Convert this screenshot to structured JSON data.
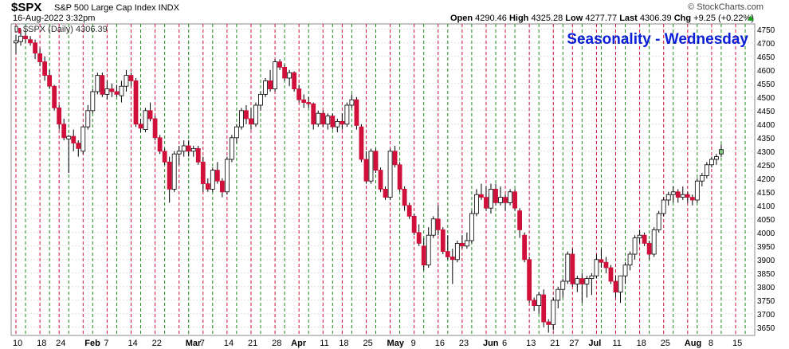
{
  "header": {
    "symbol": "$SPX",
    "name": "S&P 500 Large Cap Index  INDX",
    "datetime": "16-Aug-2022 3:32pm",
    "open_label": "Open",
    "open": "4290.46",
    "high_label": "High",
    "high": "4325.28",
    "low_label": "Low",
    "low": "4277.77",
    "last_label": "Last",
    "last": "4306.39",
    "chg_label": "Chg",
    "chg": "+9.25 (+0.22%)",
    "copyright": "© StockCharts.com"
  },
  "colors": {
    "up": "#ffffff",
    "down": "#d0103a",
    "neutral": "#000000",
    "current": "#7ed07e",
    "title": "#0a1fd6",
    "monday_line": "#d0103a",
    "wednesday_line": "#1c8c1c"
  },
  "chart_data": {
    "type": "candlestick",
    "title": "Seasonality - Wednesday",
    "legend": "$SPX (Daily) 4306.39",
    "ylim": [
      3620,
      4770
    ],
    "y_ticks": [
      3650,
      3700,
      3750,
      3800,
      3850,
      3900,
      3950,
      4000,
      4050,
      4100,
      4150,
      4200,
      4250,
      4300,
      4350,
      4400,
      4450,
      4500,
      4550,
      4600,
      4650,
      4700,
      4750
    ],
    "x_ticks": [
      {
        "label": "10",
        "day": 0
      },
      {
        "label": "18",
        "day": 5
      },
      {
        "label": "24",
        "day": 9
      },
      {
        "label": "Feb",
        "day": 15
      },
      {
        "label": "7",
        "day": 19
      },
      {
        "label": "14",
        "day": 24
      },
      {
        "label": "22",
        "day": 29
      },
      {
        "label": "Mar",
        "day": 36
      },
      {
        "label": "7",
        "day": 39
      },
      {
        "label": "14",
        "day": 44
      },
      {
        "label": "21",
        "day": 49
      },
      {
        "label": "28",
        "day": 54
      },
      {
        "label": "Apr",
        "day": 58
      },
      {
        "label": "11",
        "day": 64
      },
      {
        "label": "18",
        "day": 68
      },
      {
        "label": "25",
        "day": 73
      },
      {
        "label": "May",
        "day": 78
      },
      {
        "label": "9",
        "day": 83
      },
      {
        "label": "16",
        "day": 88
      },
      {
        "label": "23",
        "day": 93
      },
      {
        "label": "Jun",
        "day": 98
      },
      {
        "label": "6",
        "day": 102
      },
      {
        "label": "13",
        "day": 107
      },
      {
        "label": "21",
        "day": 112
      },
      {
        "label": "27",
        "day": 116
      },
      {
        "label": "Jul",
        "day": 120
      },
      {
        "label": "11",
        "day": 125
      },
      {
        "label": "18",
        "day": 130
      },
      {
        "label": "25",
        "day": 135
      },
      {
        "label": "Aug",
        "day": 140
      },
      {
        "label": "8",
        "day": 145
      },
      {
        "label": "15",
        "day": 150
      }
    ],
    "monday_days": [
      0,
      5,
      9,
      14,
      19,
      24,
      29,
      34,
      39,
      44,
      49,
      54,
      59,
      64,
      68,
      73,
      78,
      83,
      88,
      93,
      98,
      102,
      107,
      112,
      116,
      121,
      125,
      130,
      135,
      140,
      145,
      150
    ],
    "wednesday_days": [
      2,
      7,
      11,
      16,
      21,
      26,
      31,
      36,
      41,
      46,
      51,
      56,
      61,
      66,
      70,
      75,
      80,
      85,
      90,
      95,
      100,
      104,
      109,
      114,
      118,
      122,
      127,
      132,
      137,
      142,
      147,
      152
    ],
    "candles": [
      [
        4700,
        4730,
        4660,
        4708
      ],
      [
        4705,
        4750,
        4690,
        4725
      ],
      [
        4725,
        4745,
        4700,
        4715
      ],
      [
        4712,
        4725,
        4690,
        4700
      ],
      [
        4700,
        4712,
        4640,
        4662
      ],
      [
        4660,
        4680,
        4615,
        4630
      ],
      [
        4630,
        4650,
        4560,
        4580
      ],
      [
        4580,
        4600,
        4530,
        4540
      ],
      [
        4540,
        4545,
        4450,
        4460
      ],
      [
        4460,
        4470,
        4380,
        4400
      ],
      [
        4400,
        4420,
        4340,
        4350
      ],
      [
        4345,
        4360,
        4220,
        4355
      ],
      [
        4355,
        4380,
        4300,
        4330
      ],
      [
        4330,
        4340,
        4280,
        4310
      ],
      [
        4300,
        4395,
        4290,
        4390
      ],
      [
        4390,
        4470,
        4380,
        4450
      ],
      [
        4450,
        4530,
        4440,
        4520
      ],
      [
        4520,
        4590,
        4510,
        4580
      ],
      [
        4580,
        4590,
        4500,
        4510
      ],
      [
        4510,
        4560,
        4490,
        4530
      ],
      [
        4530,
        4550,
        4500,
        4520
      ],
      [
        4520,
        4545,
        4500,
        4510
      ],
      [
        4505,
        4560,
        4480,
        4540
      ],
      [
        4540,
        4600,
        4520,
        4580
      ],
      [
        4580,
        4590,
        4540,
        4560
      ],
      [
        4560,
        4570,
        4390,
        4400
      ],
      [
        4400,
        4420,
        4370,
        4385
      ],
      [
        4380,
        4460,
        4370,
        4450
      ],
      [
        4450,
        4480,
        4410,
        4420
      ],
      [
        4420,
        4430,
        4340,
        4350
      ],
      [
        4350,
        4360,
        4290,
        4300
      ],
      [
        4300,
        4310,
        4250,
        4260
      ],
      [
        4260,
        4280,
        4110,
        4160
      ],
      [
        4160,
        4300,
        4150,
        4290
      ],
      [
        4290,
        4320,
        4250,
        4300
      ],
      [
        4300,
        4340,
        4280,
        4320
      ],
      [
        4320,
        4340,
        4280,
        4300
      ],
      [
        4300,
        4320,
        4280,
        4310
      ],
      [
        4310,
        4320,
        4250,
        4260
      ],
      [
        4260,
        4280,
        4150,
        4180
      ],
      [
        4180,
        4200,
        4150,
        4160
      ],
      [
        4160,
        4240,
        4150,
        4230
      ],
      [
        4230,
        4260,
        4180,
        4190
      ],
      [
        4190,
        4200,
        4130,
        4150
      ],
      [
        4150,
        4280,
        4140,
        4270
      ],
      [
        4270,
        4360,
        4260,
        4350
      ],
      [
        4350,
        4400,
        4330,
        4390
      ],
      [
        4390,
        4460,
        4380,
        4450
      ],
      [
        4450,
        4470,
        4400,
        4420
      ],
      [
        4420,
        4460,
        4380,
        4400
      ],
      [
        4400,
        4480,
        4390,
        4470
      ],
      [
        4470,
        4520,
        4450,
        4510
      ],
      [
        4510,
        4570,
        4500,
        4560
      ],
      [
        4560,
        4600,
        4520,
        4530
      ],
      [
        4530,
        4640,
        4520,
        4630
      ],
      [
        4630,
        4640,
        4600,
        4610
      ],
      [
        4610,
        4620,
        4560,
        4570
      ],
      [
        4570,
        4600,
        4540,
        4590
      ],
      [
        4590,
        4595,
        4520,
        4530
      ],
      [
        4530,
        4545,
        4480,
        4490
      ],
      [
        4490,
        4510,
        4460,
        4480
      ],
      [
        4480,
        4500,
        4460,
        4475
      ],
      [
        4475,
        4480,
        4380,
        4400
      ],
      [
        4400,
        4450,
        4390,
        4440
      ],
      [
        4440,
        4450,
        4390,
        4400
      ],
      [
        4400,
        4440,
        4380,
        4430
      ],
      [
        4430,
        4440,
        4380,
        4390
      ],
      [
        4390,
        4420,
        4370,
        4410
      ],
      [
        4410,
        4440,
        4380,
        4400
      ],
      [
        4400,
        4480,
        4390,
        4470
      ],
      [
        4470,
        4510,
        4460,
        4490
      ],
      [
        4490,
        4500,
        4380,
        4395
      ],
      [
        4390,
        4400,
        4260,
        4270
      ],
      [
        4270,
        4300,
        4180,
        4190
      ],
      [
        4190,
        4310,
        4180,
        4300
      ],
      [
        4300,
        4310,
        4220,
        4230
      ],
      [
        4230,
        4240,
        4150,
        4160
      ],
      [
        4160,
        4170,
        4120,
        4130
      ],
      [
        4130,
        4310,
        4120,
        4300
      ],
      [
        4300,
        4320,
        4240,
        4250
      ],
      [
        4250,
        4260,
        4150,
        4160
      ],
      [
        4160,
        4170,
        4080,
        4100
      ],
      [
        4100,
        4110,
        4050,
        4060
      ],
      [
        4060,
        4070,
        3990,
        4000
      ],
      [
        4000,
        4030,
        3950,
        3960
      ],
      [
        3950,
        3980,
        3860,
        3880
      ],
      [
        3880,
        4020,
        3870,
        3990
      ],
      [
        3990,
        4060,
        3980,
        4050
      ],
      [
        4050,
        4100,
        3990,
        4010
      ],
      [
        4010,
        4020,
        3920,
        3930
      ],
      [
        3930,
        3990,
        3900,
        3910
      ],
      [
        3910,
        3940,
        3810,
        3900
      ],
      [
        3900,
        3970,
        3890,
        3960
      ],
      [
        3960,
        3990,
        3940,
        3950
      ],
      [
        3950,
        4000,
        3940,
        3970
      ],
      [
        3970,
        4080,
        3960,
        4070
      ],
      [
        4070,
        4160,
        4060,
        4140
      ],
      [
        4140,
        4180,
        4120,
        4130
      ],
      [
        4130,
        4170,
        4080,
        4090
      ],
      [
        4090,
        4180,
        4070,
        4160
      ],
      [
        4160,
        4180,
        4100,
        4110
      ],
      [
        4110,
        4170,
        4100,
        4130
      ],
      [
        4130,
        4140,
        4080,
        4110
      ],
      [
        4110,
        4160,
        4100,
        4150
      ],
      [
        4150,
        4160,
        4080,
        4090
      ],
      [
        4080,
        4090,
        3980,
        4010
      ],
      [
        3990,
        4000,
        3890,
        3900
      ],
      [
        3900,
        3910,
        3740,
        3750
      ],
      [
        3750,
        3760,
        3710,
        3730
      ],
      [
        3730,
        3780,
        3700,
        3770
      ],
      [
        3770,
        3790,
        3650,
        3670
      ],
      [
        3670,
        3680,
        3630,
        3660
      ],
      [
        3660,
        3760,
        3640,
        3750
      ],
      [
        3750,
        3800,
        3720,
        3790
      ],
      [
        3790,
        3830,
        3760,
        3820
      ],
      [
        3820,
        3930,
        3810,
        3920
      ],
      [
        3920,
        3940,
        3800,
        3810
      ],
      [
        3810,
        3840,
        3780,
        3830
      ],
      [
        3830,
        3850,
        3740,
        3810
      ],
      [
        3810,
        3840,
        3760,
        3830
      ],
      [
        3830,
        3850,
        3770,
        3840
      ],
      [
        3840,
        3920,
        3830,
        3900
      ],
      [
        3900,
        3940,
        3870,
        3890
      ],
      [
        3890,
        3910,
        3850,
        3870
      ],
      [
        3870,
        3880,
        3810,
        3820
      ],
      [
        3820,
        3840,
        3760,
        3780
      ],
      [
        3780,
        3830,
        3740,
        3840
      ],
      [
        3840,
        3890,
        3810,
        3880
      ],
      [
        3880,
        3930,
        3860,
        3920
      ],
      [
        3920,
        3990,
        3900,
        3980
      ],
      [
        3980,
        4010,
        3960,
        3990
      ],
      [
        3990,
        4000,
        3950,
        3960
      ],
      [
        3960,
        3970,
        3900,
        3920
      ],
      [
        3920,
        4020,
        3910,
        4010
      ],
      [
        4010,
        4080,
        4000,
        4070
      ],
      [
        4070,
        4130,
        4060,
        4120
      ],
      [
        4120,
        4150,
        4100,
        4140
      ],
      [
        4140,
        4170,
        4110,
        4150
      ],
      [
        4150,
        4160,
        4110,
        4130
      ],
      [
        4130,
        4170,
        4120,
        4140
      ],
      [
        4140,
        4150,
        4110,
        4130
      ],
      [
        4130,
        4140,
        4100,
        4120
      ],
      [
        4120,
        4200,
        4110,
        4190
      ],
      [
        4190,
        4220,
        4170,
        4210
      ],
      [
        4210,
        4260,
        4200,
        4250
      ],
      [
        4250,
        4280,
        4240,
        4270
      ],
      [
        4270,
        4290,
        4250,
        4280
      ],
      [
        4290,
        4325,
        4278,
        4306
      ]
    ]
  }
}
